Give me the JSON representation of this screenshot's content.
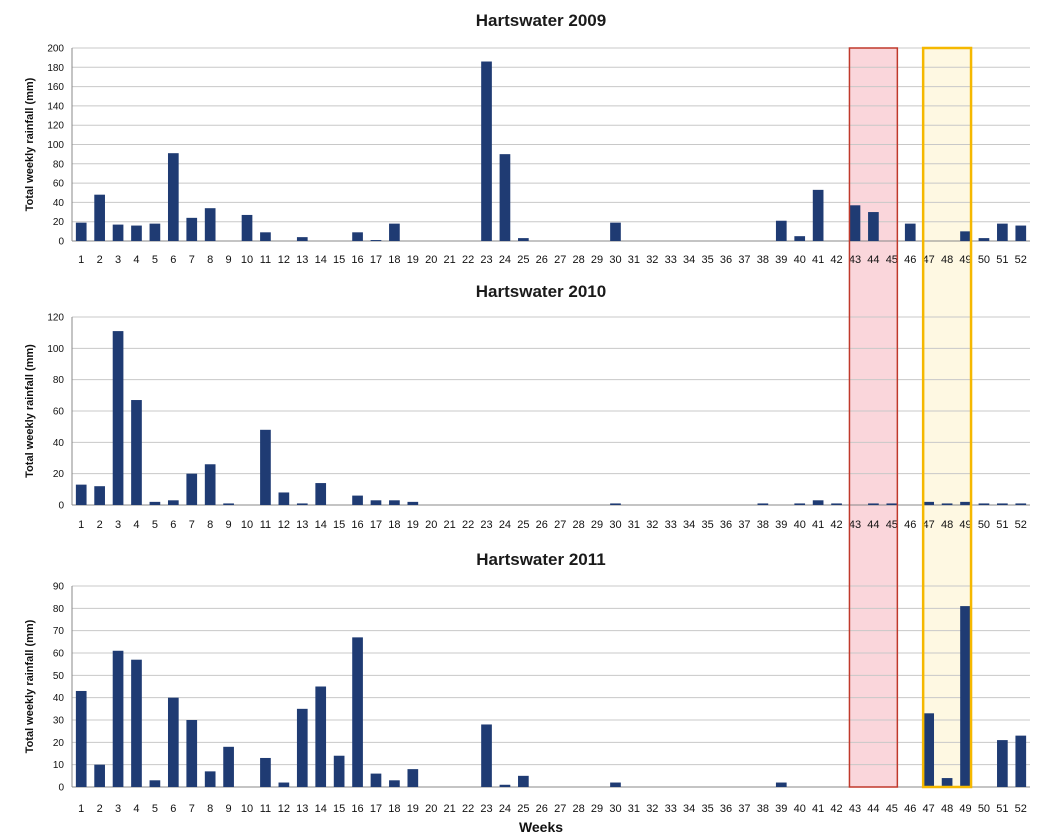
{
  "colors": {
    "bar": "#1f3b73",
    "highlight_red_fill": "#f8c8cf",
    "highlight_red_stroke": "#c0392b",
    "highlight_yellow_fill": "#fdf5d6",
    "highlight_yellow_stroke": "#f5b800"
  },
  "xlabel": "Weeks",
  "highlights": [
    {
      "name": "red",
      "from_week": 43,
      "to_week": 45
    },
    {
      "name": "yellow",
      "from_week": 47,
      "to_week": 49
    }
  ],
  "chart_data": [
    {
      "type": "bar",
      "title": "Hartswater 2009",
      "ylabel": "Total weekly rainfall (mm)",
      "ylim": [
        0,
        200
      ],
      "yticks": [
        0,
        20,
        40,
        60,
        80,
        100,
        120,
        140,
        160,
        180,
        200
      ],
      "categories": [
        "1",
        "2",
        "3",
        "4",
        "5",
        "6",
        "7",
        "8",
        "9",
        "10",
        "11",
        "12",
        "13",
        "14",
        "15",
        "16",
        "17",
        "18",
        "19",
        "20",
        "21",
        "22",
        "23",
        "24",
        "25",
        "26",
        "27",
        "28",
        "29",
        "30",
        "31",
        "32",
        "33",
        "34",
        "35",
        "36",
        "37",
        "38",
        "39",
        "40",
        "41",
        "42",
        "43",
        "44",
        "45",
        "46",
        "47",
        "48",
        "49",
        "50",
        "51",
        "52"
      ],
      "values": [
        19,
        48,
        17,
        16,
        18,
        91,
        24,
        34,
        0,
        27,
        9,
        0,
        4,
        0,
        0,
        9,
        1,
        18,
        0,
        0,
        0,
        0,
        186,
        90,
        3,
        0,
        0,
        0,
        0,
        19,
        0,
        0,
        0,
        0,
        0,
        0,
        0,
        0,
        21,
        5,
        53,
        0,
        37,
        30,
        0,
        18,
        0,
        0,
        10,
        3,
        18,
        16
      ]
    },
    {
      "type": "bar",
      "title": "Hartswater 2010",
      "ylabel": "Total weekly rainfall (mm)",
      "ylim": [
        0,
        120
      ],
      "yticks": [
        0,
        20,
        40,
        60,
        80,
        100,
        120
      ],
      "categories": [
        "1",
        "2",
        "3",
        "4",
        "5",
        "6",
        "7",
        "8",
        "9",
        "10",
        "11",
        "12",
        "13",
        "14",
        "15",
        "16",
        "17",
        "18",
        "19",
        "20",
        "21",
        "22",
        "23",
        "24",
        "25",
        "26",
        "27",
        "28",
        "29",
        "30",
        "31",
        "32",
        "33",
        "34",
        "35",
        "36",
        "37",
        "38",
        "39",
        "40",
        "41",
        "42",
        "43",
        "44",
        "45",
        "46",
        "47",
        "48",
        "49",
        "50",
        "51",
        "52"
      ],
      "values": [
        13,
        12,
        111,
        67,
        2,
        3,
        20,
        26,
        1,
        0,
        48,
        8,
        1,
        14,
        0,
        6,
        3,
        3,
        2,
        0,
        0,
        0,
        0,
        0,
        0,
        0,
        0,
        0,
        0,
        1,
        0,
        0,
        0,
        0,
        0,
        0,
        0,
        1,
        0,
        1,
        3,
        1,
        0,
        1,
        1,
        0,
        2,
        1,
        2,
        1,
        1,
        1
      ]
    },
    {
      "type": "bar",
      "title": "Hartswater 2011",
      "ylabel": "Total weekly rainfall (mm)",
      "ylim": [
        0,
        90
      ],
      "yticks": [
        0,
        10,
        20,
        30,
        40,
        50,
        60,
        70,
        80,
        90
      ],
      "categories": [
        "1",
        "2",
        "3",
        "4",
        "5",
        "6",
        "7",
        "8",
        "9",
        "10",
        "11",
        "12",
        "13",
        "14",
        "15",
        "16",
        "17",
        "18",
        "19",
        "20",
        "21",
        "22",
        "23",
        "24",
        "25",
        "26",
        "27",
        "28",
        "29",
        "30",
        "31",
        "32",
        "33",
        "34",
        "35",
        "36",
        "37",
        "38",
        "39",
        "40",
        "41",
        "42",
        "43",
        "44",
        "45",
        "46",
        "47",
        "48",
        "49",
        "50",
        "51",
        "52"
      ],
      "values": [
        43,
        10,
        61,
        57,
        3,
        40,
        30,
        7,
        18,
        0,
        13,
        2,
        35,
        45,
        14,
        67,
        6,
        3,
        8,
        0,
        0,
        0,
        28,
        1,
        5,
        0,
        0,
        0,
        0,
        2,
        0,
        0,
        0,
        0,
        0,
        0,
        0,
        0,
        2,
        0,
        0,
        0,
        0,
        0,
        0,
        0,
        33,
        4,
        81,
        0,
        21,
        23
      ]
    }
  ]
}
